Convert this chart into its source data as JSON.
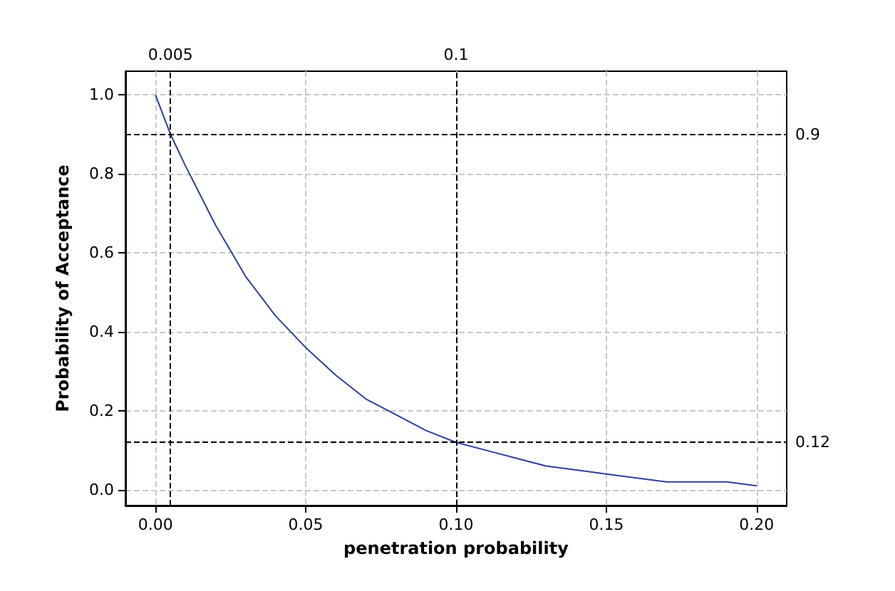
{
  "chart_data": {
    "type": "line",
    "xlabel": "penetration probability",
    "ylabel": "Probability of Acceptance",
    "x": [
      0,
      0.005,
      0.01,
      0.02,
      0.03,
      0.04,
      0.05,
      0.06,
      0.07,
      0.08,
      0.09,
      0.1,
      0.11,
      0.12,
      0.13,
      0.14,
      0.15,
      0.16,
      0.17,
      0.18,
      0.19,
      0.2
    ],
    "series": [
      {
        "color": "#2e3f9e",
        "values": [
          1,
          0.9,
          0.82,
          0.67,
          0.54,
          0.44,
          0.36,
          0.29,
          0.23,
          0.19,
          0.15,
          0.12,
          0.1,
          0.08,
          0.06,
          0.05,
          0.04,
          0.03,
          0.02,
          0.02,
          0.02,
          0.01
        ]
      }
    ],
    "xlim": [
      -0.01,
      0.21
    ],
    "ylim": [
      -0.04,
      1.06
    ],
    "xticks": [
      {
        "value": 0,
        "label": "0.00"
      },
      {
        "value": 0.05,
        "label": "0.05"
      },
      {
        "value": 0.1,
        "label": "0.10"
      },
      {
        "value": 0.15,
        "label": "0.15"
      },
      {
        "value": 0.2,
        "label": "0.20"
      }
    ],
    "yticks": [
      {
        "value": 0,
        "label": "0.0"
      },
      {
        "value": 0.2,
        "label": "0.2"
      },
      {
        "value": 0.4,
        "label": "0.4"
      },
      {
        "value": 0.6,
        "label": "0.6"
      },
      {
        "value": 0.8,
        "label": "0.8"
      },
      {
        "value": 1,
        "label": "1.0"
      }
    ],
    "ref_lines": [
      {
        "axis": "x",
        "value": 0.005,
        "label": "0.005",
        "color": "#000000",
        "line_style": "dashed"
      },
      {
        "axis": "x",
        "value": 0.1,
        "label": "0.1",
        "color": "#000000",
        "line_style": "dashed"
      },
      {
        "axis": "y",
        "value": 0.9,
        "label": "0.9",
        "color": "#000000",
        "line_style": "dashed"
      },
      {
        "axis": "y",
        "value": 0.12,
        "label": "0.12",
        "color": "#000000",
        "line_style": "dashed"
      }
    ],
    "grid": true,
    "marker": "none",
    "line_style": "solid"
  }
}
